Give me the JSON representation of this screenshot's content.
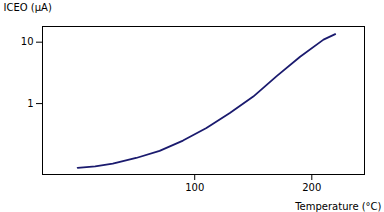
{
  "chart_data": {
    "type": "line",
    "xlabel": "Temperature (°C)",
    "ylabel": "ICEO (μA)",
    "x": [
      0,
      15,
      30,
      50,
      70,
      90,
      110,
      130,
      150,
      170,
      190,
      210,
      220
    ],
    "values": [
      0.09,
      0.095,
      0.105,
      0.13,
      0.17,
      0.25,
      0.4,
      0.7,
      1.3,
      2.8,
      5.8,
      11.0,
      13.5
    ],
    "color": "#1a1a6e",
    "log": "y",
    "xlim": [
      -30,
      245
    ],
    "ylim": [
      0.07,
      18
    ],
    "xticks": [
      100,
      200
    ],
    "yticks": [
      1,
      10
    ],
    "grid": false
  }
}
